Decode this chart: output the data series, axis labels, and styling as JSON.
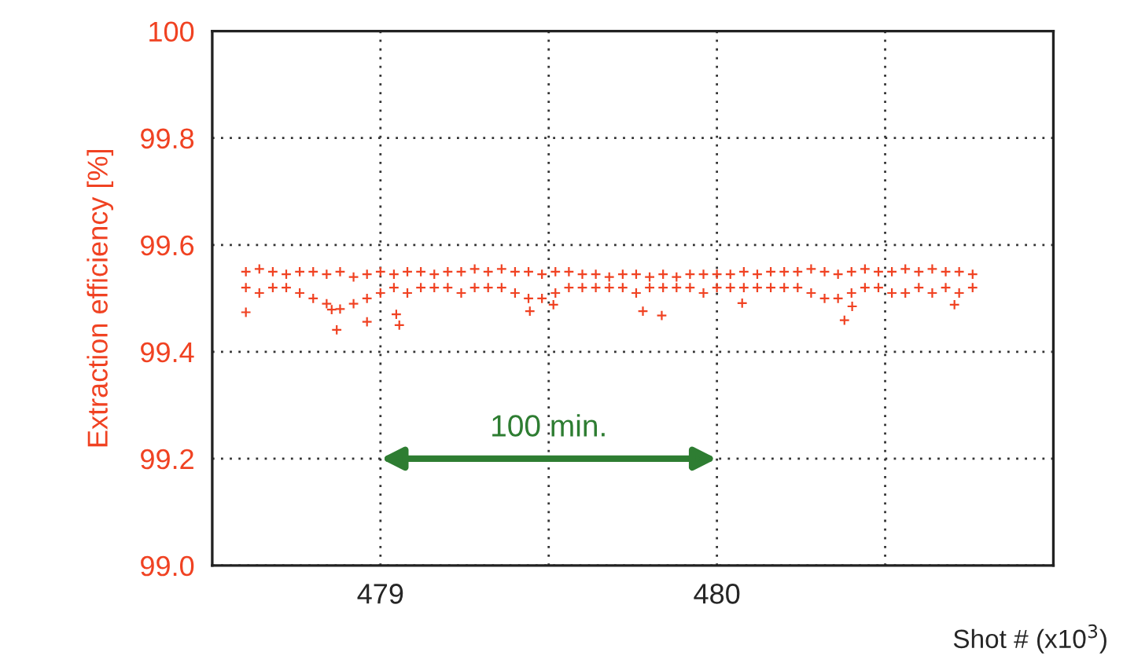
{
  "chart_data": {
    "type": "scatter",
    "xlabel": "Shot # (x10$^{3}$)",
    "ylabel": "Extraction efficiency [%]",
    "xlim": [
      478.5,
      481
    ],
    "ylim": [
      99.0,
      100
    ],
    "xticks": [
      {
        "value": 479,
        "label": "479"
      },
      {
        "value": 479.5,
        "label": null
      },
      {
        "value": 480,
        "label": "480"
      },
      {
        "value": 480.5,
        "label": null
      }
    ],
    "yticks": [
      {
        "value": 99,
        "label": "99.0"
      },
      99.2,
      99.4,
      99.6,
      99.8,
      100
    ],
    "grid": true,
    "marker": "cross",
    "annotations": [
      "100 min."
    ],
    "series": [
      {
        "color": "#f04222",
        "x": [
          478.6,
          478.64,
          478.68,
          478.72,
          478.76,
          478.8,
          478.84,
          478.88,
          478.92,
          478.96,
          479.0,
          479.04,
          479.08,
          479.12,
          479.16,
          479.2,
          479.24,
          479.28,
          479.32,
          479.36,
          479.4,
          479.44,
          479.48,
          479.52,
          479.56,
          479.6,
          479.64,
          479.68,
          479.72,
          479.76,
          479.8,
          479.84,
          479.88,
          479.92,
          479.96,
          480.0,
          480.04,
          480.08,
          480.12,
          480.16,
          480.2,
          480.24,
          480.28,
          480.32,
          480.36,
          480.4,
          480.44,
          480.48,
          480.52,
          480.56,
          480.6,
          480.64,
          480.68,
          480.72,
          480.76,
          478.6,
          478.64,
          478.68,
          478.72,
          478.76,
          478.8,
          478.84,
          478.88,
          478.92,
          478.96,
          479.0,
          479.04,
          479.08,
          479.12,
          479.16,
          479.2,
          479.24,
          479.28,
          479.32,
          479.36,
          479.4,
          479.44,
          479.48,
          479.52,
          479.56,
          479.6,
          479.64,
          479.68,
          479.72,
          479.76,
          479.8,
          479.84,
          479.88,
          479.92,
          479.96,
          480.0,
          480.04,
          480.08,
          480.12,
          480.16,
          480.2,
          480.24,
          480.28,
          480.32,
          480.36,
          480.4,
          480.44,
          480.48,
          480.52,
          480.56,
          480.6,
          480.64,
          480.68,
          480.72,
          480.76,
          478.6,
          478.87,
          478.855,
          478.96,
          479.056,
          479.047,
          479.444,
          479.514,
          479.836,
          479.78,
          480.379,
          480.075,
          480.706,
          480.402
        ],
        "values": [
          99.55,
          99.555,
          99.55,
          99.545,
          99.55,
          99.55,
          99.545,
          99.55,
          99.54,
          99.545,
          99.55,
          99.545,
          99.55,
          99.55,
          99.545,
          99.55,
          99.55,
          99.555,
          99.55,
          99.555,
          99.55,
          99.55,
          99.545,
          99.55,
          99.55,
          99.545,
          99.545,
          99.54,
          99.545,
          99.545,
          99.54,
          99.545,
          99.54,
          99.545,
          99.545,
          99.545,
          99.545,
          99.55,
          99.545,
          99.55,
          99.55,
          99.55,
          99.555,
          99.55,
          99.545,
          99.55,
          99.555,
          99.55,
          99.55,
          99.555,
          99.55,
          99.555,
          99.55,
          99.55,
          99.545,
          99.52,
          99.51,
          99.52,
          99.52,
          99.51,
          99.5,
          99.49,
          99.48,
          99.49,
          99.5,
          99.51,
          99.52,
          99.51,
          99.52,
          99.52,
          99.52,
          99.51,
          99.52,
          99.52,
          99.52,
          99.51,
          99.5,
          99.5,
          99.51,
          99.52,
          99.52,
          99.52,
          99.52,
          99.52,
          99.51,
          99.52,
          99.52,
          99.52,
          99.52,
          99.51,
          99.52,
          99.52,
          99.52,
          99.52,
          99.52,
          99.52,
          99.52,
          99.51,
          99.5,
          99.5,
          99.51,
          99.52,
          99.52,
          99.51,
          99.51,
          99.52,
          99.51,
          99.52,
          99.51,
          99.52,
          99.474,
          99.441,
          99.479,
          99.456,
          99.45,
          99.47,
          99.476,
          99.488,
          99.468,
          99.476,
          99.459,
          99.491,
          99.488,
          99.485
        ]
      }
    ]
  }
}
